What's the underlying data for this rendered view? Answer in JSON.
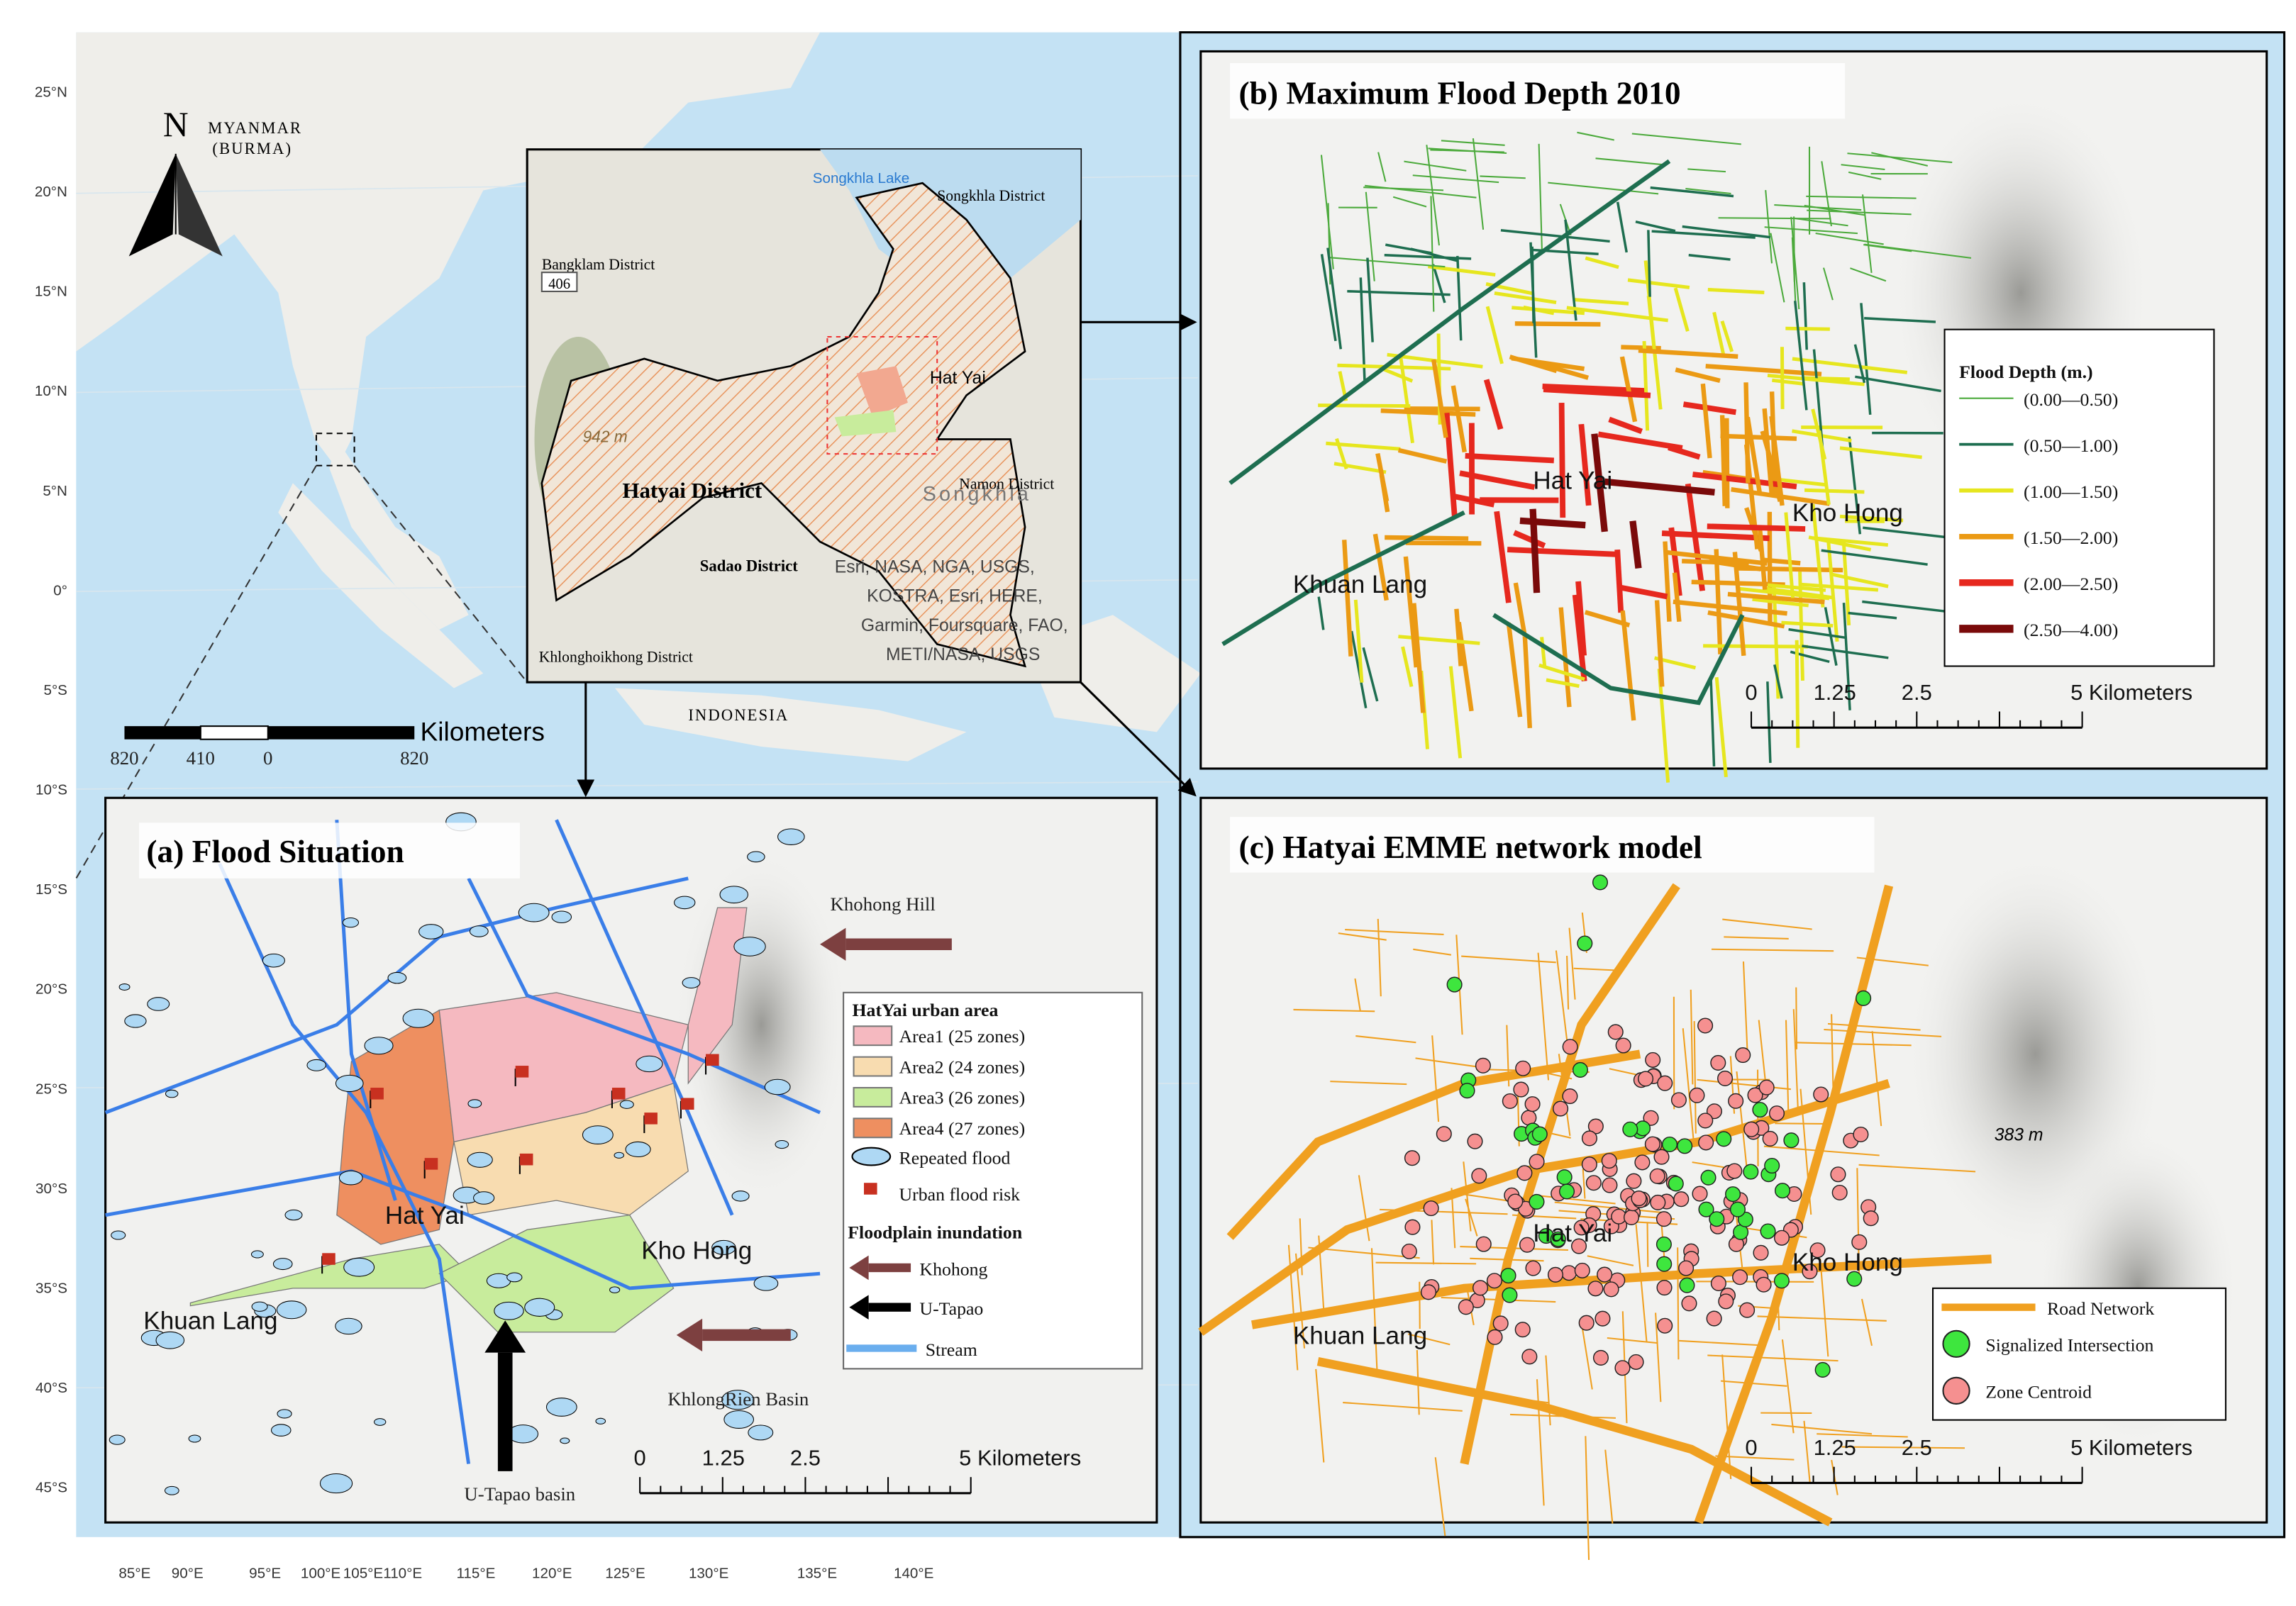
{
  "overview_map": {
    "lat_labels": [
      "25°N",
      "20°N",
      "15°N",
      "10°N",
      "5°N",
      "0°",
      "5°S",
      "10°S",
      "15°S",
      "20°S",
      "25°S",
      "30°S",
      "35°S",
      "40°S",
      "45°S"
    ],
    "lon_labels": [
      "85°E",
      "90°E",
      "95°E",
      "100°E",
      "105°E",
      "110°E",
      "115°E",
      "120°E",
      "125°E",
      "130°E",
      "135°E",
      "140°E"
    ],
    "north_label": "N",
    "country_labels": [
      "MYANMAR",
      "(BURMA)",
      "INDONESIA"
    ],
    "scale_bar": {
      "ticks": [
        "820",
        "410",
        "0",
        "820"
      ],
      "unit": "Kilometers"
    }
  },
  "inset_map": {
    "labels": [
      "Songkhla Lake",
      "Songkhla District",
      "Bangklam District",
      "406",
      "Hat Yai",
      "942 m",
      "Hatyai District",
      "Songkhla",
      "Namon District",
      "Sadao District",
      "Esri, NASA, NGA, USGS,",
      "KOSTRA, Esri, HERE,",
      "Garmin, Foursquare, FAO,",
      "METI/NASA, USGS",
      "Khlonghoikhong District"
    ]
  },
  "panel_a": {
    "title": "(a) Flood Situation",
    "place_labels": [
      "Khohong Hill",
      "Hat Yai",
      "Kho Hong",
      "Khuan Lang",
      "KhlongRien Basin",
      "U-Tapao basin"
    ],
    "legend": {
      "title": "HatYai  urban area",
      "areas": [
        {
          "label": "Area1 (25 zones)",
          "color": "#f5b9c0"
        },
        {
          "label": "Area2 (24 zones)",
          "color": "#f8dcb0"
        },
        {
          "label": "Area3 (26 zones)",
          "color": "#c8ec9c"
        },
        {
          "label": "Area4 (27 zones)",
          "color": "#ee8f60"
        }
      ],
      "repeated_flood": "Repeated flood",
      "urban_flood_risk": "Urban flood risk",
      "inundation_title": "Floodplain inundation",
      "inundation": [
        {
          "label": "Khohong",
          "color": "#7d4040"
        },
        {
          "label": "U-Tapao",
          "color": "#000000"
        }
      ],
      "stream": {
        "label": "Stream",
        "color": "#6aaeee"
      }
    },
    "scale_bar": {
      "ticks": [
        "0",
        "1.25",
        "2.5",
        "5 Kilometers"
      ]
    }
  },
  "panel_b": {
    "title": "(b) Maximum Flood Depth 2010",
    "place_labels": [
      "Hat Yai",
      "Kho Hong",
      "Khuan Lang"
    ],
    "legend": {
      "title": "Flood Depth (m.)",
      "classes": [
        {
          "label": "(0.00—0.50)",
          "color": "#4caa3c"
        },
        {
          "label": "(0.50—1.00)",
          "color": "#1e6e50"
        },
        {
          "label": "(1.00—1.50)",
          "color": "#e6e61e"
        },
        {
          "label": "(1.50—2.00)",
          "color": "#eb9a14"
        },
        {
          "label": "(2.00—2.50)",
          "color": "#e6281e"
        },
        {
          "label": "(2.50—4.00)",
          "color": "#7a0a0a"
        }
      ]
    },
    "scale_bar": {
      "ticks": [
        "0",
        "1.25",
        "2.5",
        "5 Kilometers"
      ]
    }
  },
  "panel_c": {
    "title": "(c) Hatyai EMME network model",
    "place_labels": [
      "Hat Yai",
      "Kho Hong",
      "Khuan Lang",
      "383 m"
    ],
    "legend": [
      {
        "label": "Road Network",
        "color": "#f0a020"
      },
      {
        "label": "Signalized Intersection",
        "color": "#3ee63e"
      },
      {
        "label": "Zone Centroid",
        "color": "#f59090"
      }
    ],
    "scale_bar": {
      "ticks": [
        "0",
        "1.25",
        "2.5",
        "5 Kilometers"
      ]
    }
  }
}
